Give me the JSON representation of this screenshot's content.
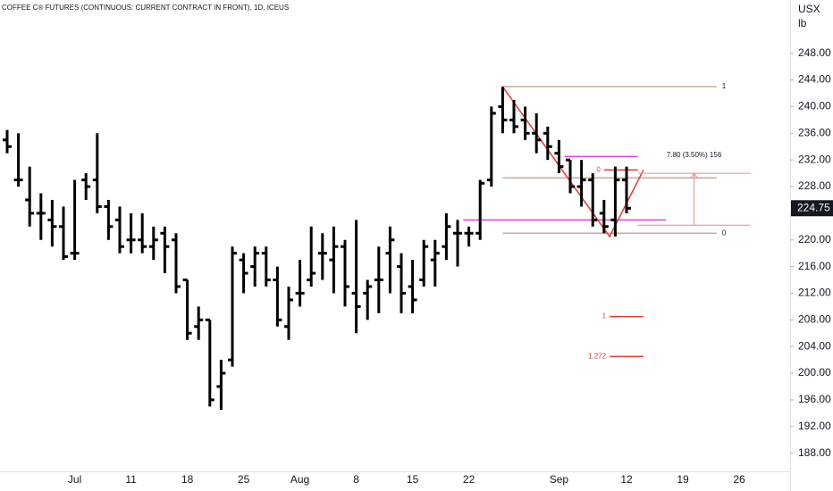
{
  "chart_data": {
    "type": "ohlc",
    "title": "COFFEE C® FUTURES (CONTINUOUS: CURRENT CONTRACT IN FRONT), 1D, ICEUS",
    "currency": "USX",
    "unit": "lb",
    "categories": [
      null,
      null,
      null,
      null,
      null,
      null,
      "Jul",
      null,
      null,
      null,
      null,
      "11",
      null,
      null,
      null,
      null,
      "18",
      null,
      null,
      null,
      null,
      "25",
      null,
      null,
      null,
      null,
      "Aug",
      null,
      null,
      null,
      null,
      "8",
      null,
      null,
      null,
      null,
      "15",
      null,
      null,
      null,
      null,
      "22",
      null,
      null,
      null,
      null,
      null,
      null,
      null,
      "Sep",
      null,
      null,
      null,
      null,
      null,
      "12",
      null,
      null,
      null,
      null,
      "19",
      null,
      null,
      null,
      null,
      "26"
    ],
    "open": [
      235,
      229,
      226,
      224,
      223,
      222,
      218,
      229,
      229,
      225,
      223,
      220,
      220,
      219,
      221,
      220,
      214,
      207,
      208,
      198,
      202,
      217,
      216,
      218,
      214,
      207,
      212,
      214,
      218,
      217,
      219,
      212,
      212,
      214,
      218,
      216,
      213,
      214,
      217,
      219,
      221,
      221,
      221,
      229,
      240,
      238,
      238,
      236,
      236,
      233,
      232,
      228,
      229,
      224,
      223,
      229,
      null,
      null,
      null,
      null,
      null,
      null,
      null,
      null,
      null,
      null
    ],
    "high": [
      236.5,
      236,
      231,
      227,
      226,
      225,
      229,
      230,
      236,
      226,
      225,
      224,
      224,
      222,
      222,
      221,
      214,
      210,
      208,
      202,
      219,
      218,
      219,
      219,
      216,
      213,
      217,
      222,
      221,
      222,
      220,
      223,
      214,
      219,
      222,
      218,
      217,
      220,
      220,
      224,
      223,
      222,
      229,
      240,
      243,
      241,
      240,
      239,
      237,
      235,
      232,
      232,
      230,
      226,
      231,
      231,
      null,
      null,
      null,
      null,
      null,
      null,
      null,
      null,
      null,
      null
    ],
    "low": [
      233,
      228,
      222,
      220,
      219,
      217,
      217,
      226,
      224,
      220,
      218,
      218,
      218,
      217,
      215,
      212,
      205,
      205,
      195,
      194.5,
      201,
      212,
      213,
      213,
      207,
      205,
      210,
      213,
      214,
      212,
      210,
      206,
      208,
      209,
      212,
      209,
      209,
      213,
      213,
      217,
      216,
      219,
      220,
      228,
      236,
      236,
      235,
      233,
      232,
      230,
      227,
      225,
      222,
      221,
      220.5,
      224,
      null,
      null,
      null,
      null,
      null,
      null,
      null,
      null,
      null,
      null
    ],
    "close": [
      234,
      229,
      224,
      224,
      222,
      217.5,
      218,
      228,
      225,
      222,
      219,
      220,
      219,
      220,
      219,
      213,
      206,
      208,
      196,
      200,
      218,
      215,
      218,
      214,
      208,
      211,
      212,
      215,
      218,
      219,
      213,
      210,
      213,
      214,
      220,
      212,
      211,
      219,
      218,
      222,
      221,
      221,
      228.5,
      239,
      238,
      237,
      236,
      235,
      234,
      231,
      228,
      229,
      223,
      222,
      229,
      224.75,
      null,
      null,
      null,
      null,
      null,
      null,
      null,
      null,
      null,
      null
    ],
    "color": "#000000",
    "ylim": [
      185,
      256
    ],
    "yticks": [
      {
        "value": 188,
        "label": "188.00"
      },
      {
        "value": 192,
        "label": "192.00"
      },
      {
        "value": 196,
        "label": "196.00"
      },
      {
        "value": 200,
        "label": "200.00"
      },
      {
        "value": 204,
        "label": "204.00"
      },
      {
        "value": 208,
        "label": "208.00"
      },
      {
        "value": 212,
        "label": "212.00"
      },
      {
        "value": 216,
        "label": "216.00"
      },
      {
        "value": 220,
        "label": "220.00"
      },
      {
        "value": 224,
        "label": "224.00"
      },
      {
        "value": 228,
        "label": "228.00"
      },
      {
        "value": 232,
        "label": "232.00"
      },
      {
        "value": 236,
        "label": "236.00"
      },
      {
        "value": 240,
        "label": "240.00"
      },
      {
        "value": 244,
        "label": "244.00"
      },
      {
        "value": 248,
        "label": "248.00"
      }
    ],
    "last_price": 224.75,
    "drawings": [
      {
        "kind": "hline",
        "price": 243,
        "from": 44,
        "to": 63,
        "color": "#c8ab9e",
        "label": "1",
        "label_side": "right"
      },
      {
        "kind": "hline",
        "price": 229.3,
        "from": 44,
        "to": 63,
        "color": "#c8ab9e"
      },
      {
        "kind": "hline",
        "price": 221,
        "from": 44,
        "to": 63,
        "color": "#c8ab9e",
        "label": "0",
        "label_side": "right"
      },
      {
        "kind": "hline",
        "price": 232.5,
        "from": 49.5,
        "to": 56,
        "color": "#e040e0"
      },
      {
        "kind": "hline",
        "price": 223,
        "from": 40.5,
        "to": 58.5,
        "color": "#e040e0"
      },
      {
        "kind": "hline",
        "price": 230.5,
        "from": 53,
        "to": 56,
        "color": "#e53935",
        "label": "0",
        "label_side": "left"
      },
      {
        "kind": "hline",
        "price": 208.5,
        "from": 53.5,
        "to": 56.5,
        "color": "#e53935",
        "label": "1",
        "label_side": "left"
      },
      {
        "kind": "hline",
        "price": 202.5,
        "from": 53.5,
        "to": 56.5,
        "color": "#e53935",
        "label": "1.272",
        "label_side": "left"
      },
      {
        "kind": "polyline",
        "x": [
          44,
          53.5,
          56.5
        ],
        "y": [
          243,
          220.5,
          230.5
        ],
        "color": "#e53935"
      },
      {
        "kind": "range",
        "from": 56,
        "to": 66,
        "start": 222.2,
        "end": 230,
        "color": "#e58a8a",
        "label": "7.80 (3.50%) 156"
      }
    ]
  }
}
